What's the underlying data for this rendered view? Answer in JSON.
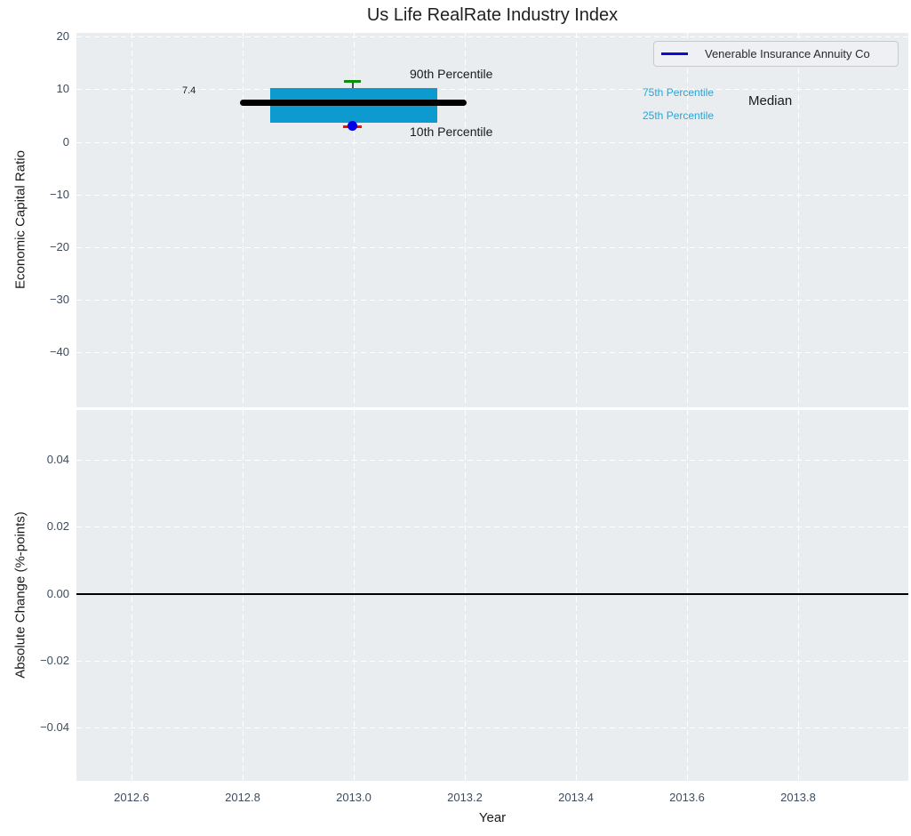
{
  "figure": {
    "title": "Us Life RealRate Industry Index",
    "xlabel": "Year"
  },
  "chart_data": [
    {
      "type": "boxplot",
      "title": "Us Life RealRate Industry Index",
      "ylabel": "Economic Capital Ratio",
      "xlabel": "Year",
      "xlim": [
        2012.5,
        2014.0
      ],
      "ylim": [
        -49.7,
        20.5
      ],
      "grid": "white dashed gridlines on gray background",
      "background_color": "#e9edef",
      "xtick_labels": [
        "2012.6",
        "2012.8",
        "2013.0",
        "2013.2",
        "2013.4",
        "2013.6",
        "2013.8"
      ],
      "ytick_labels": [
        "20",
        "10",
        "0",
        "−10",
        "−20",
        "−30",
        "−40"
      ],
      "legend": {
        "position": "upper right",
        "entries": [
          {
            "label": "Venerable Insurance Annuity Co",
            "color": "#0b0bd8",
            "marker": "line"
          }
        ]
      },
      "series": [
        {
          "name": "Industry percentile box",
          "x": 2013.0,
          "p90": 11.5,
          "p75": 10.2,
          "median": 7.4,
          "p25": 3.7,
          "p10": 3.0,
          "box_color": "#0d9ace",
          "median_color": "#000000",
          "cap90_color": "#0a8f0a",
          "cap10_color": "#e81010"
        },
        {
          "name": "Venerable Insurance Annuity Co",
          "x": 2013.0,
          "y": 3.0,
          "marker": "dot",
          "color": "#0000e8"
        }
      ],
      "annotations": [
        {
          "text": "7.4",
          "color": "#1a1a1a",
          "refers_to": "median value"
        },
        {
          "text": "90th Percentile",
          "color": "#1a1a1a"
        },
        {
          "text": "10th Percentile",
          "color": "#1a1a1a"
        },
        {
          "text": "75th Percentile",
          "color": "#29a4d9"
        },
        {
          "text": "25th Percentile",
          "color": "#29a4d9"
        },
        {
          "text": "Median",
          "color": "#1a1a1a"
        }
      ]
    },
    {
      "type": "line",
      "ylabel": "Absolute Change (%-points)",
      "xlabel": "Year",
      "xlim": [
        2012.5,
        2014.0
      ],
      "ylim": [
        -0.056,
        0.055
      ],
      "xtick_labels": [
        "2012.6",
        "2012.8",
        "2013.0",
        "2013.2",
        "2013.4",
        "2013.6",
        "2013.8"
      ],
      "ytick_labels": [
        "0.04",
        "0.02",
        "0.00",
        "−0.02",
        "−0.04"
      ],
      "zero_line_y": 0.0,
      "series": []
    }
  ]
}
